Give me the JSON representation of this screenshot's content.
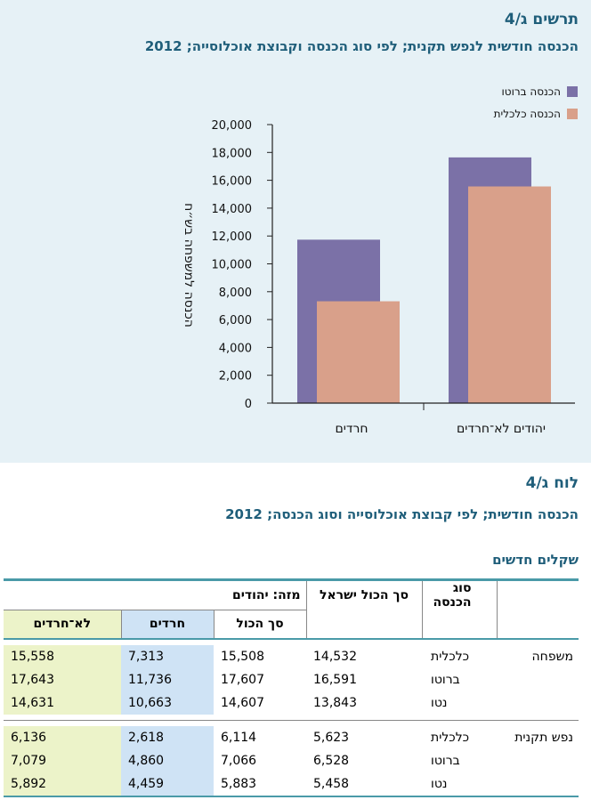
{
  "chart_section": {
    "figure_number": "תרשים ג/4",
    "subtitle": "הכנסה חודשית לנפש תקנית; לפי סוג הכנסה וקבוצת אוכלוסייה; 2012"
  },
  "chart_data": {
    "type": "bar",
    "categories": [
      "חרדים",
      "יהודים לא־חרדים"
    ],
    "series": [
      {
        "name": "הכנסה ברוטו",
        "values": [
          11736,
          17643
        ]
      },
      {
        "name": "הכנסה כלכלית",
        "values": [
          7313,
          15558
        ]
      }
    ],
    "ylabel": "הכנסה למשפחה בש״ח",
    "ylim": [
      0,
      20000
    ],
    "yticks": [
      "20,000",
      "18,000",
      "16,000",
      "14,000",
      "12,000",
      "10,000",
      "8,000",
      "6,000",
      "4,000",
      "2,000",
      "0"
    ],
    "legend_position": "top-right",
    "colors": {
      "brutto": "#7b71a7",
      "economic": "#d9a08a"
    }
  },
  "table_section": {
    "table_number": "לוח ג/4",
    "subtitle": "הכנסה חודשית; לפי קבוצת אוכלוסייה וסוג הכנסה; 2012",
    "units": "שקלים חדשים",
    "headers": {
      "income_type": "סוג הכנסה",
      "total_israel": "סך הכול ישראל",
      "of_which_jews": "מזה: יהודים",
      "total": "סך הכול",
      "haredim": "חרדים",
      "non_haredim": "לא־חרדים"
    },
    "groups": [
      {
        "name": "משפחה",
        "rows": [
          {
            "type": "כלכלית",
            "israel": "14,532",
            "total": "15,508",
            "haredim": "7,313",
            "non_haredim": "15,558"
          },
          {
            "type": "ברוטו",
            "israel": "16,591",
            "total": "17,607",
            "haredim": "11,736",
            "non_haredim": "17,643"
          },
          {
            "type": "נטו",
            "israel": "13,843",
            "total": "14,607",
            "haredim": "10,663",
            "non_haredim": "14,631"
          }
        ]
      },
      {
        "name": "נפש תקנית",
        "rows": [
          {
            "type": "כלכלית",
            "israel": "5,623",
            "total": "6,114",
            "haredim": "2,618",
            "non_haredim": "6,136"
          },
          {
            "type": "ברוטו",
            "israel": "6,528",
            "total": "7,066",
            "haredim": "4,860",
            "non_haredim": "7,079"
          },
          {
            "type": "נטו",
            "israel": "5,458",
            "total": "5,883",
            "haredim": "4,459",
            "non_haredim": "5,892"
          }
        ]
      }
    ]
  }
}
